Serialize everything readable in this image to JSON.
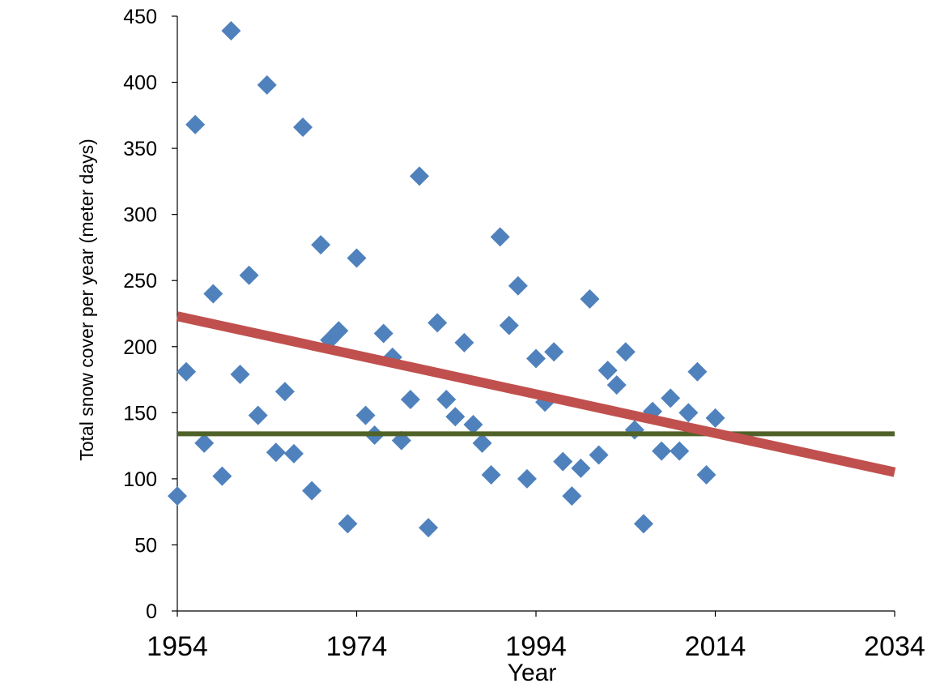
{
  "chart_data": {
    "type": "scatter",
    "title": "",
    "xlabel": "Year",
    "ylabel": "Total snow cover per year (meter days)",
    "xlim": [
      1954,
      2034
    ],
    "ylim": [
      0,
      450
    ],
    "x_ticks": [
      "1954",
      "1974",
      "1994",
      "2014",
      "2034"
    ],
    "y_ticks": [
      "0",
      "50",
      "100",
      "150",
      "200",
      "250",
      "300",
      "350",
      "400",
      "450"
    ],
    "grid": false,
    "legend": "none",
    "colors": {
      "points": "#4f81bd",
      "trend": "#c0504d",
      "mean": "#4f6228"
    },
    "points": {
      "x": [
        1954,
        1955,
        1956,
        1957,
        1958,
        1959,
        1960,
        1961,
        1962,
        1963,
        1964,
        1965,
        1966,
        1967,
        1968,
        1969,
        1970,
        1971,
        1972,
        1973,
        1974,
        1975,
        1976,
        1977,
        1978,
        1979,
        1980,
        1981,
        1982,
        1983,
        1984,
        1985,
        1986,
        1987,
        1988,
        1989,
        1990,
        1991,
        1992,
        1993,
        1994,
        1995,
        1996,
        1997,
        1998,
        1999,
        2000,
        2001,
        2002,
        2003,
        2004,
        2005,
        2006,
        2007,
        2008,
        2009,
        2010,
        2011,
        2012,
        2013,
        2014
      ],
      "y": [
        87,
        181,
        368,
        127,
        240,
        102,
        439,
        179,
        254,
        148,
        398,
        120,
        166,
        119,
        366,
        91,
        277,
        205,
        212,
        66,
        267,
        148,
        133,
        210,
        192,
        129,
        160,
        329,
        63,
        218,
        160,
        147,
        203,
        141,
        127,
        103,
        283,
        216,
        246,
        100,
        191,
        158,
        196,
        113,
        87,
        108,
        236,
        118,
        182,
        171,
        196,
        137,
        66,
        151,
        121,
        161,
        121,
        150,
        181,
        103,
        146
      ]
    },
    "trend_line": {
      "x": [
        1954,
        2034
      ],
      "y": [
        223,
        105
      ]
    },
    "mean_line": {
      "x": [
        1954,
        2034
      ],
      "y": [
        134,
        134
      ]
    }
  }
}
